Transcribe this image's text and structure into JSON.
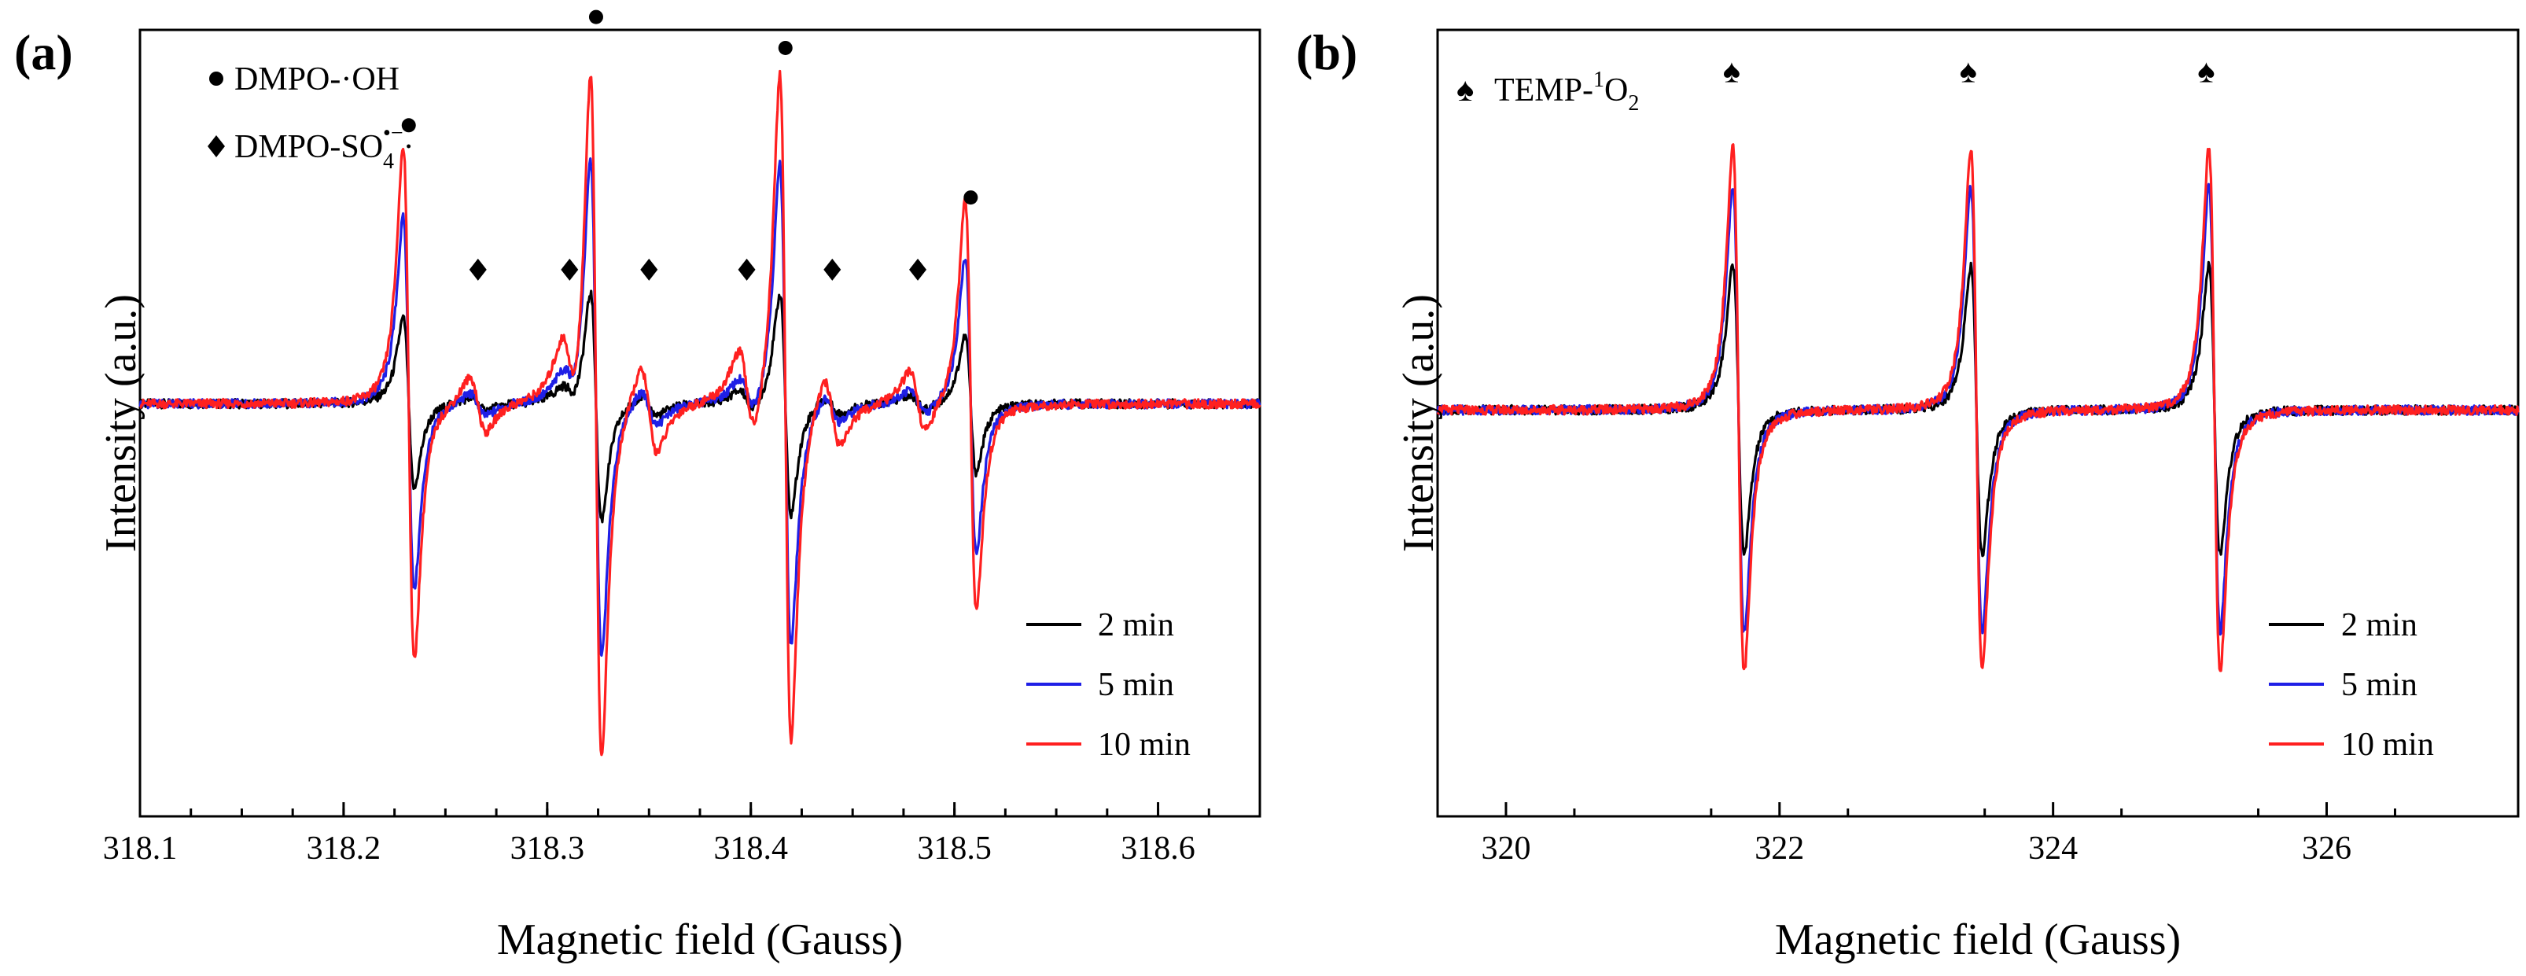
{
  "chart_data": [
    {
      "panel": "(a)",
      "type": "line",
      "xlabel": "Magnetic field (Gauss)",
      "ylabel": "Intensity (a.u.)",
      "xlim": [
        318.1,
        318.65
      ],
      "ylim": [
        -1.6,
        1.45
      ],
      "xticks": [
        318.1,
        318.2,
        318.3,
        318.4,
        318.5,
        318.6
      ],
      "xtick_labels": [
        "318.1",
        "318.2",
        "318.3",
        "318.4",
        "318.5",
        "318.6"
      ],
      "annotations": {
        "legend": [
          {
            "symbol": "●",
            "label": "DMPO-·OH"
          },
          {
            "symbol": "◆",
            "label": "DMPO-SO",
            "sub": "4",
            "sup": "•−",
            "tail": "·"
          }
        ],
        "dot_positions": [
          318.232,
          318.324,
          318.417,
          318.508
        ],
        "dot_levels": [
          1.08,
          1.5,
          1.38,
          0.8
        ],
        "diamond_positions": [
          318.266,
          318.311,
          318.35,
          318.398,
          318.44,
          318.482
        ],
        "diamond_level": 0.52
      },
      "peaks": {
        "oh": [
          318.232,
          318.324,
          318.417,
          318.508
        ],
        "oh_rel": [
          1,
          1.35,
          1.3,
          0.8
        ],
        "so4": [
          318.266,
          318.311,
          318.35,
          318.398,
          318.44,
          318.482
        ],
        "so4_rel": [
          0.32,
          0.5,
          0.5,
          0.5,
          0.4,
          0.35
        ],
        "oh_width": 0.0048,
        "so4_width": 0.007
      },
      "series": [
        {
          "name": "2 min",
          "color": "#000000",
          "oh_amp": 0.33,
          "so4_amp": 0.08
        },
        {
          "name": "5 min",
          "color": "#1f1fe6",
          "oh_amp": 0.72,
          "so4_amp": 0.14
        },
        {
          "name": "10 min",
          "color": "#ff2020",
          "oh_amp": 1.0,
          "so4_amp": 0.34
        }
      ],
      "legend_labels": [
        "2 min",
        "5 min",
        "10 min"
      ]
    },
    {
      "panel": "(b)",
      "type": "line",
      "xlabel": "Magnetic field (Gauss)",
      "ylabel": "Intensity (a.u.)",
      "xlim": [
        319.5,
        327.4
      ],
      "ylim": [
        -1.55,
        1.45
      ],
      "xticks": [
        320,
        322,
        324,
        326
      ],
      "xtick_labels": [
        "320",
        "322",
        "324",
        "326"
      ],
      "annotations": {
        "legend": [
          {
            "symbol": "♠",
            "label": "TEMP-",
            "sup": "1",
            "tail": "O",
            "sub": "2"
          }
        ],
        "spade_positions": [
          321.65,
          323.38,
          325.12
        ],
        "spade_level": 1.25
      },
      "peaks": {
        "centers": [
          321.7,
          323.44,
          325.18
        ],
        "width": 0.072
      },
      "series": [
        {
          "name": "2 min",
          "color": "#000000",
          "amp": 0.55
        },
        {
          "name": "5 min",
          "color": "#1f1fe6",
          "amp": 0.85
        },
        {
          "name": "10 min",
          "color": "#ff2020",
          "amp": 1.0
        }
      ],
      "legend_labels": [
        "2 min",
        "5 min",
        "10 min"
      ]
    }
  ]
}
